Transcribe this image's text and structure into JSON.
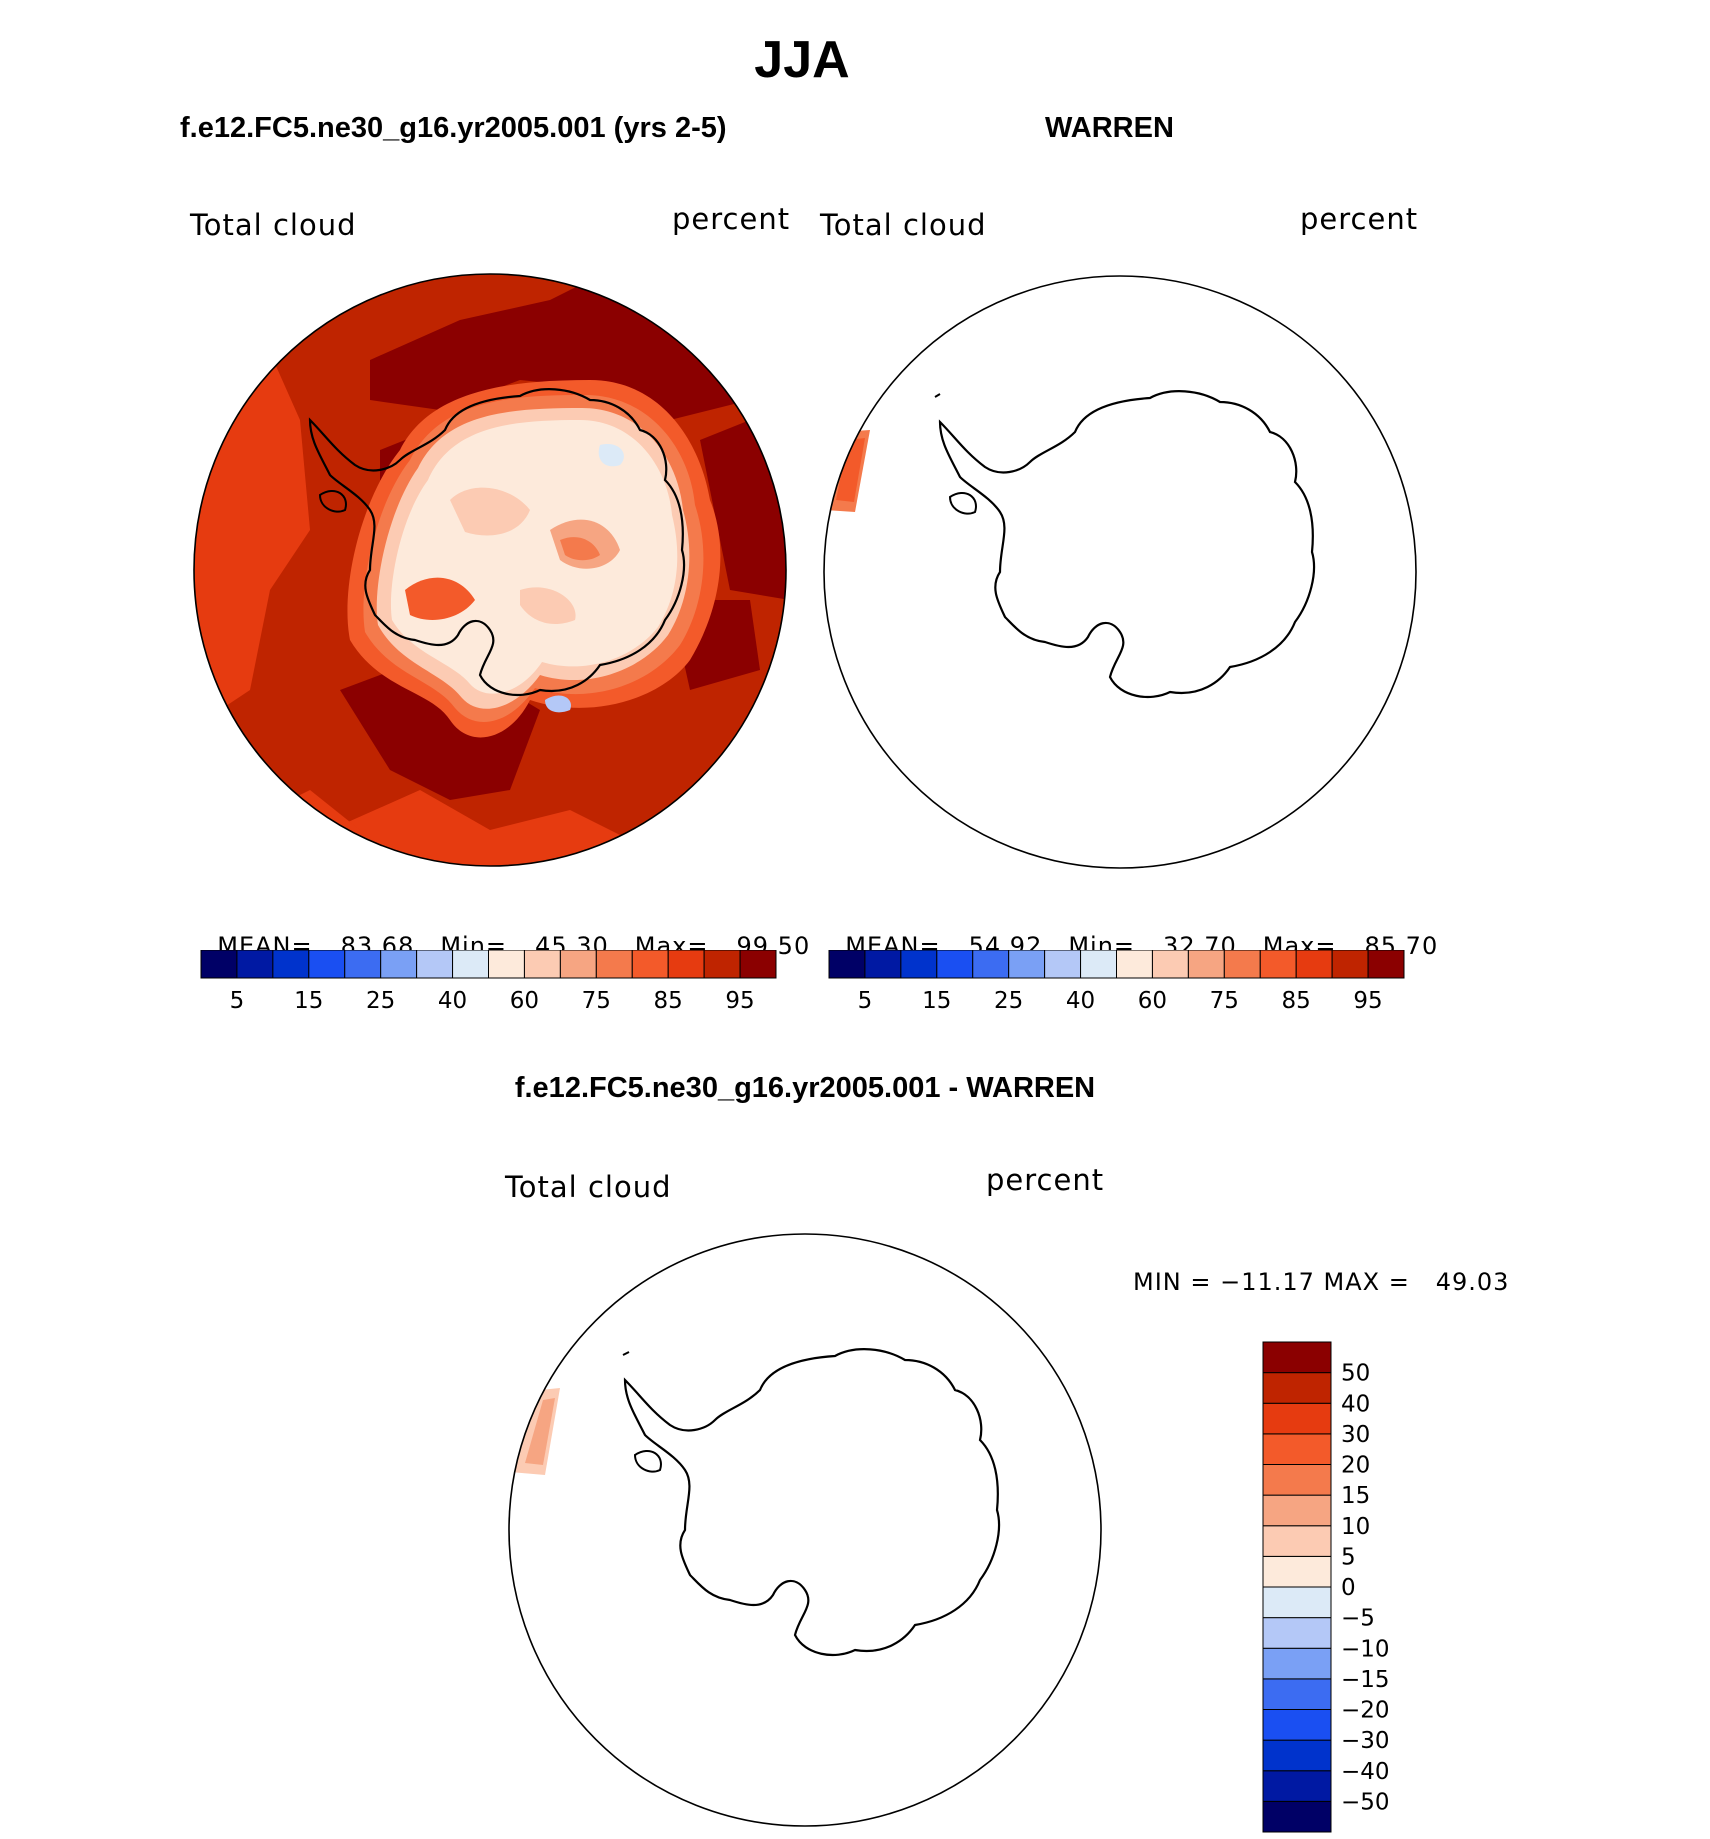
{
  "title": "JJA",
  "panels": [
    {
      "heading": "f.e12.FC5.ne30_g16.yr2005.001 (yrs 2-5)",
      "left_label": "Total cloud",
      "right_label": "percent",
      "stats": {
        "mean_label": "MEAN=",
        "mean": "83.68",
        "min_label": "Min=",
        "min": "45.30",
        "max_label": "Max=",
        "max": "99.50"
      }
    },
    {
      "heading": "WARREN",
      "left_label": "Total cloud",
      "right_label": "percent",
      "stats": {
        "mean_label": "MEAN=",
        "mean": "54.92",
        "min_label": "Min=",
        "min": "32.70",
        "max_label": "Max=",
        "max": "85.70"
      }
    }
  ],
  "diff_panel": {
    "heading": "f.e12.FC5.ne30_g16.yr2005.001 - WARREN",
    "left_label": "Total cloud",
    "right_label": "percent",
    "minmax": "MIN = −11.17 MAX =   49.03"
  },
  "abs_colorbar": {
    "colors": [
      "#000066",
      "#0019a3",
      "#0033cc",
      "#1a4ff2",
      "#3c6cf2",
      "#7aa0f5",
      "#b4c8f7",
      "#dceaf7",
      "#fdeadb",
      "#fccbb3",
      "#f6a582",
      "#f47a4c",
      "#f35a2a",
      "#e63b10",
      "#bf2400",
      "#8b0000"
    ],
    "tick_labels": [
      "5",
      "15",
      "25",
      "40",
      "60",
      "75",
      "85",
      "95"
    ]
  },
  "diff_colorbar": {
    "colors": [
      "#000066",
      "#0019a3",
      "#0033cc",
      "#1a4ff2",
      "#3c6cf2",
      "#7aa0f5",
      "#b4c8f7",
      "#dceaf7",
      "#fdeadb",
      "#fccbb3",
      "#f6a582",
      "#f47a4c",
      "#f35a2a",
      "#e63b10",
      "#bf2400",
      "#8b0000"
    ],
    "tick_labels": [
      "−50",
      "−40",
      "−30",
      "−20",
      "−15",
      "−10",
      "−5",
      "0",
      "5",
      "10",
      "15",
      "20",
      "30",
      "40",
      "50"
    ]
  }
}
